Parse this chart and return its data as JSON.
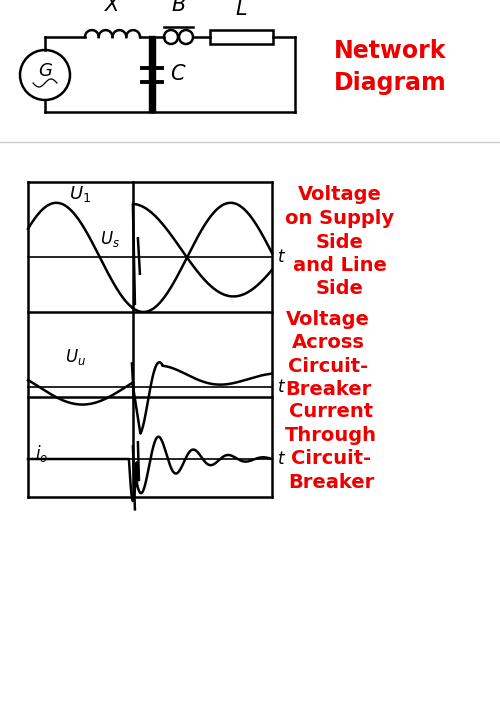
{
  "bg_color": "#ffffff",
  "red_color": "#ee0000",
  "black_color": "#000000",
  "network_label": "Network\nDiagram",
  "label_X": "X",
  "label_B": "B",
  "label_L": "L",
  "label_C": "C",
  "label_G": "G",
  "voltage_supply_label": "Voltage\non Supply\nSide\nand Line\nSide",
  "voltage_cb_label": "Voltage\nAcross\nCircuit-\nBreaker",
  "current_cb_label": "Current\nThrough\nCircuit-\nBreaker"
}
